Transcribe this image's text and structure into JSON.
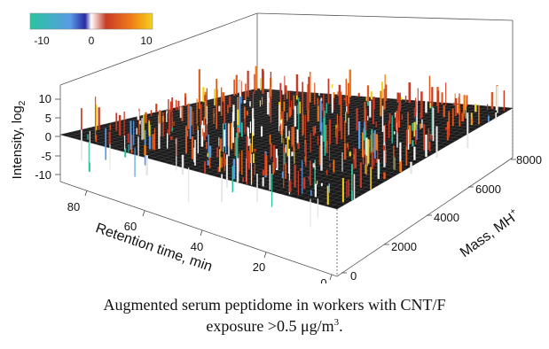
{
  "chart_data": {
    "type": "surface",
    "colorbar": {
      "ticks": [
        "-10",
        "0",
        "10"
      ],
      "range": [
        -10,
        10
      ],
      "colors": [
        "#29c4a0",
        "#5a9be6",
        "#2a2aa0",
        "#ffffff",
        "#c83a25",
        "#f07a18",
        "#f2d21a"
      ]
    },
    "z_axis": {
      "label": "Intensity, log",
      "label_sub": "2",
      "ticks": [
        "10",
        "5",
        "0",
        "-5",
        "-10"
      ],
      "range": [
        -10,
        10
      ]
    },
    "x_axis": {
      "label": "Retention time, min",
      "ticks": [
        "80",
        "60",
        "40",
        "20",
        "0"
      ],
      "range": [
        0,
        90
      ]
    },
    "y_axis": {
      "label": "Mass, MH",
      "label_sup": "+",
      "ticks": [
        "0",
        "2000",
        "4000",
        "6000",
        "8000"
      ],
      "range": [
        0,
        8000
      ]
    },
    "surface_color": "#1a1a1a",
    "peak_colors": [
      "#c83a25",
      "#e05a20",
      "#f07a18",
      "#f2d21a",
      "#ffffff",
      "#5a9be6",
      "#29c4a0"
    ]
  },
  "caption": {
    "line1": "Augmented serum peptidome in workers with CNT/F",
    "line2_prefix": "exposure >0.5 μg/m",
    "line2_sup": "3",
    "line2_suffix": "."
  }
}
